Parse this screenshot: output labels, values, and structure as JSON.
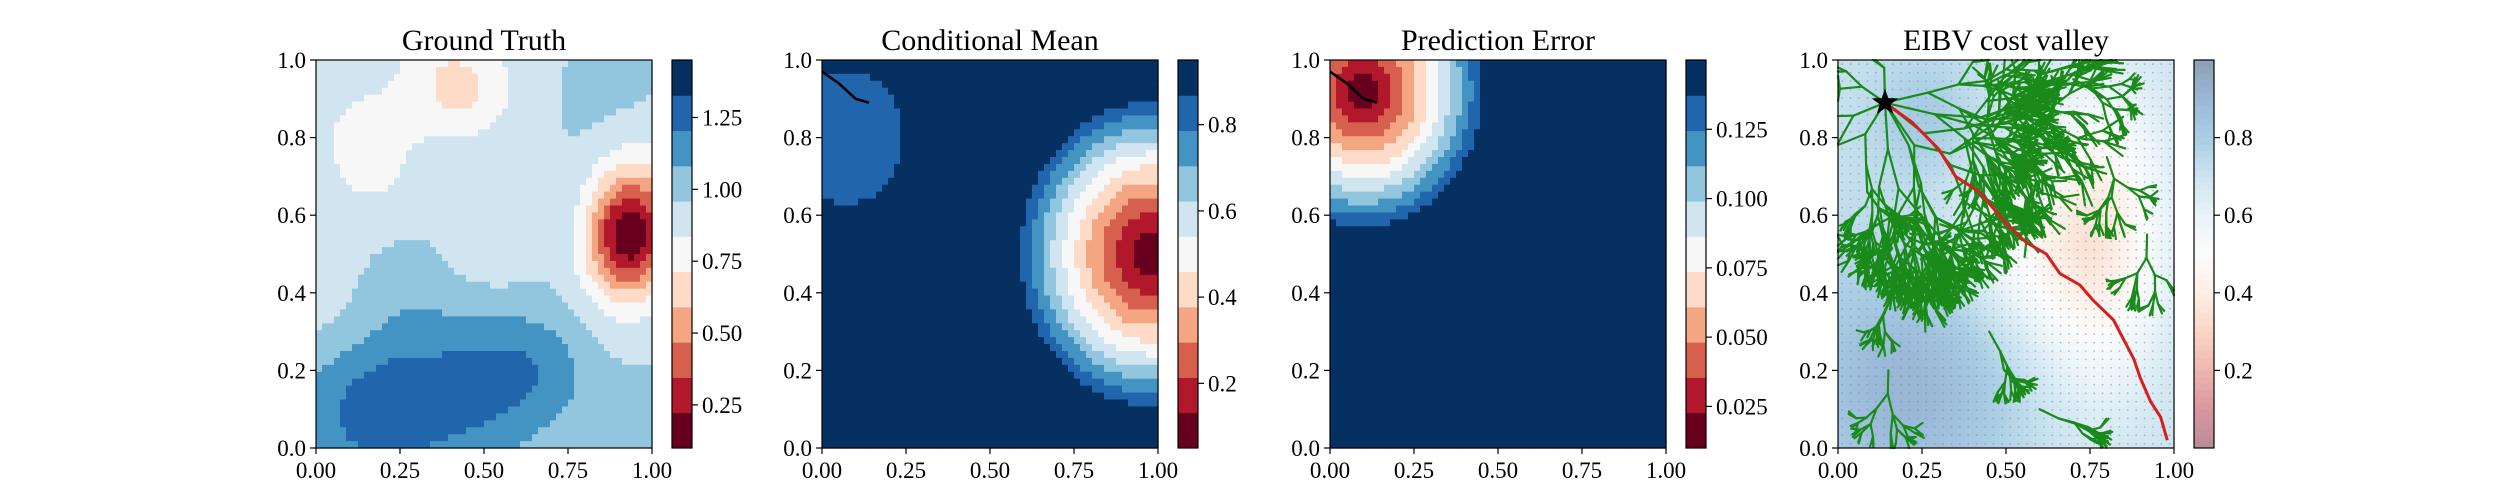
{
  "chart_data": [
    {
      "type": "heatmap",
      "title": "Ground Truth",
      "xlabel": "",
      "ylabel": "",
      "xlim": [
        0,
        1
      ],
      "ylim": [
        0,
        1
      ],
      "xticks": [
        "0.00",
        "0.25",
        "0.50",
        "0.75",
        "1.00"
      ],
      "yticks": [
        "0.0",
        "0.2",
        "0.4",
        "0.6",
        "0.8",
        "1.0"
      ],
      "colormap": "RdBu",
      "colorbar": {
        "range": [
          0.1,
          1.45
        ],
        "ticks": [
          0.25,
          0.5,
          0.75,
          1.0,
          1.25
        ],
        "ticklabels": [
          "0.25",
          "0.50",
          "0.75",
          "1.00",
          "1.25"
        ]
      },
      "field_features": [
        {
          "kind": "peak",
          "x": 0.92,
          "y": 0.56,
          "peak_value": 0.1,
          "note": "low value (dark red) hotspot"
        },
        {
          "kind": "ridge",
          "x": 0.4,
          "y": 0.9,
          "peak_value": 0.6
        },
        {
          "kind": "high",
          "x": 0.3,
          "y": 0.1,
          "peak_value": 1.4
        }
      ]
    },
    {
      "type": "heatmap",
      "title": "Conditional Mean",
      "xlabel": "",
      "ylabel": "",
      "xlim": [
        0,
        1
      ],
      "ylim": [
        0,
        1
      ],
      "xticks": [
        "0.00",
        "0.25",
        "0.50",
        "0.75",
        "1.00"
      ],
      "yticks": [
        "0.0",
        "0.2",
        "0.4",
        "0.6",
        "0.8",
        "1.0"
      ],
      "colormap": "RdBu",
      "colorbar": {
        "range": [
          0.05,
          0.95
        ],
        "ticks": [
          0.2,
          0.4,
          0.6,
          0.8
        ],
        "ticklabels": [
          "0.2",
          "0.4",
          "0.6",
          "0.8"
        ]
      },
      "field_features": [
        {
          "kind": "radial",
          "x": 0.98,
          "y": 0.5,
          "radius": 0.42,
          "min_value": 0.05
        },
        {
          "kind": "disc",
          "x": 0.07,
          "y": 0.8,
          "radius": 0.17,
          "value": 0.8
        }
      ],
      "path": {
        "color": "#000000",
        "points": [
          [
            0.0,
            0.97
          ],
          [
            0.05,
            0.94
          ],
          [
            0.1,
            0.9
          ],
          [
            0.14,
            0.89
          ]
        ]
      }
    },
    {
      "type": "heatmap",
      "title": "Prediction Error",
      "xlabel": "",
      "ylabel": "",
      "xlim": [
        0,
        1
      ],
      "ylim": [
        0,
        1
      ],
      "xticks": [
        "0.00",
        "0.25",
        "0.50",
        "0.75",
        "1.00"
      ],
      "yticks": [
        "0.0",
        "0.2",
        "0.4",
        "0.6",
        "0.8",
        "1.0"
      ],
      "colormap": "RdBu",
      "colorbar": {
        "range": [
          0.01,
          0.15
        ],
        "ticks": [
          0.025,
          0.05,
          0.075,
          0.1,
          0.125
        ],
        "ticklabels": [
          "0.025",
          "0.050",
          "0.075",
          "0.100",
          "0.125"
        ]
      },
      "field_features": [
        {
          "kind": "radial",
          "x": 0.1,
          "y": 0.92,
          "radius": 0.4,
          "min_value": 0.01
        }
      ],
      "path": {
        "color": "#000000",
        "points": [
          [
            0.0,
            0.97
          ],
          [
            0.05,
            0.94
          ],
          [
            0.1,
            0.9
          ],
          [
            0.14,
            0.89
          ]
        ]
      }
    },
    {
      "type": "heatmap",
      "title": "EIBV cost valley",
      "xlabel": "",
      "ylabel": "",
      "xlim": [
        0,
        1
      ],
      "ylim": [
        0,
        1
      ],
      "xticks": [
        "0.00",
        "0.25",
        "0.50",
        "0.75",
        "1.00"
      ],
      "yticks": [
        "0.0",
        "0.2",
        "0.4",
        "0.6",
        "0.8",
        "1.0"
      ],
      "colormap": "RdBu (faded)",
      "colorbar": {
        "range": [
          0.0,
          1.0
        ],
        "ticks": [
          0.2,
          0.4,
          0.6,
          0.8
        ],
        "ticklabels": [
          "0.2",
          "0.4",
          "0.6",
          "0.8"
        ]
      },
      "start_marker": {
        "x": 0.14,
        "y": 0.89,
        "symbol": "star"
      },
      "tree": {
        "color": "#1a8a1a",
        "description": "RRT exploration tree"
      },
      "path": {
        "color": "#d62020",
        "points": [
          [
            0.14,
            0.89
          ],
          [
            0.22,
            0.84
          ],
          [
            0.3,
            0.77
          ],
          [
            0.35,
            0.7
          ],
          [
            0.42,
            0.66
          ],
          [
            0.5,
            0.58
          ],
          [
            0.56,
            0.53
          ],
          [
            0.62,
            0.5
          ],
          [
            0.66,
            0.45
          ],
          [
            0.72,
            0.42
          ],
          [
            0.76,
            0.38
          ],
          [
            0.82,
            0.33
          ],
          [
            0.85,
            0.28
          ],
          [
            0.88,
            0.23
          ],
          [
            0.9,
            0.18
          ],
          [
            0.93,
            0.12
          ],
          [
            0.96,
            0.08
          ],
          [
            0.98,
            0.02
          ]
        ]
      }
    }
  ]
}
